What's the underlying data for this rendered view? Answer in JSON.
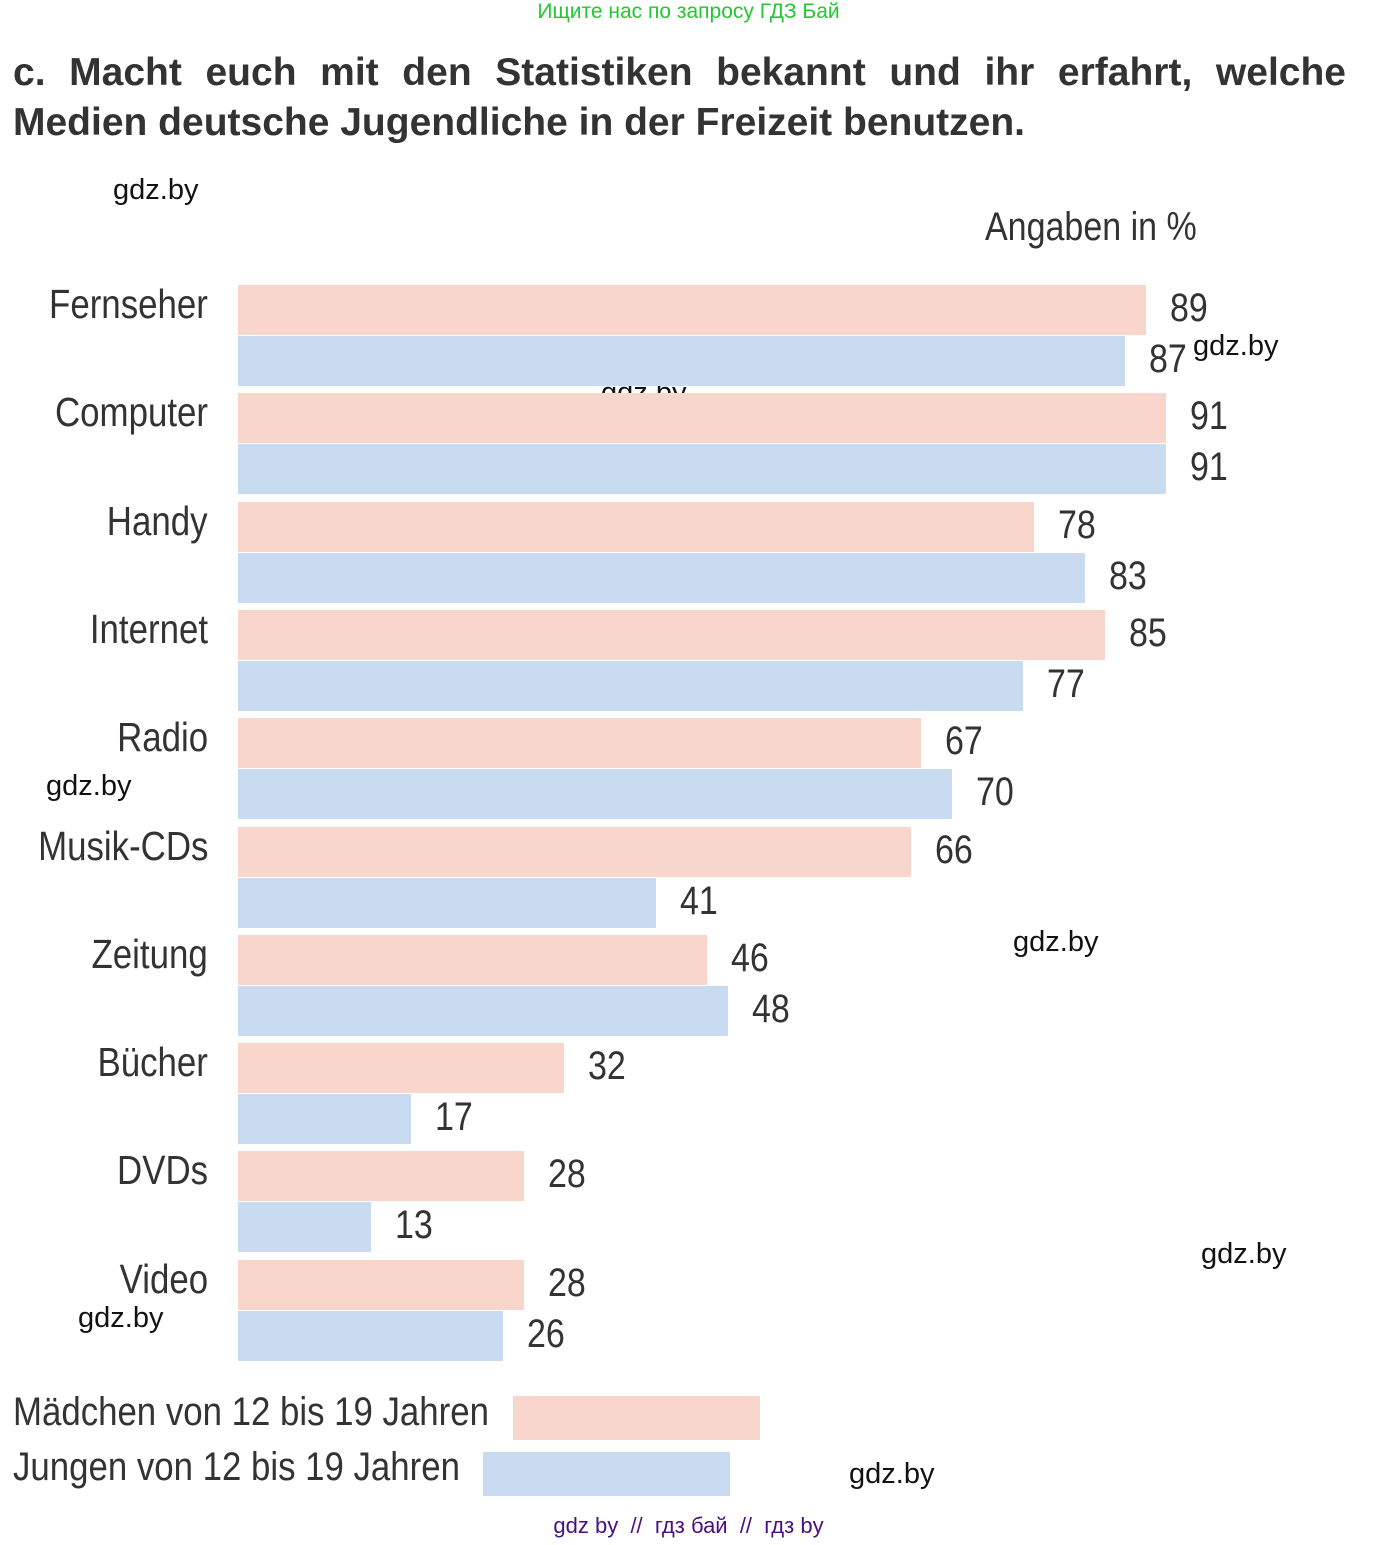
{
  "top_note": "Ищите нас по запросу ГДЗ Бай",
  "heading": "c. Macht euch mit den Statistiken bekannt und ihr erfahrt, welche Medien deutsche Jugendliche in der Freizeit benutzen.",
  "footer": "gdz by  //  гдз бай  //  гдз by",
  "watermark": "gdz.by",
  "chart_data": {
    "type": "bar",
    "orientation": "horizontal",
    "unit_label": "Angaben in %",
    "categories": [
      "Fernseher",
      "Computer",
      "Handy",
      "Internet",
      "Radio",
      "Musik-CDs",
      "Zeitung",
      "Bücher",
      "DVDs",
      "Video"
    ],
    "series": [
      {
        "name": "Mädchen von 12 bis 19 Jahren",
        "color": "#f9d6cc",
        "values": [
          89,
          91,
          78,
          85,
          67,
          66,
          46,
          32,
          28,
          28
        ]
      },
      {
        "name": "Jungen von 12 bis 19 Jahren",
        "color": "#c9dbf0",
        "values": [
          87,
          91,
          83,
          77,
          70,
          41,
          48,
          17,
          13,
          26
        ]
      }
    ],
    "legend": "bottom-left",
    "grid": false
  }
}
